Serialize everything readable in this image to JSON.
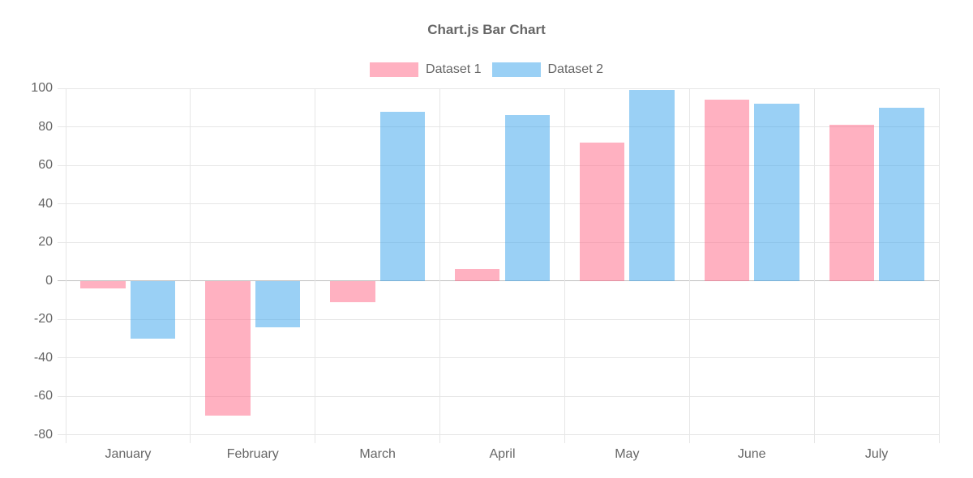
{
  "chart_data": {
    "type": "bar",
    "title": "Chart.js Bar Chart",
    "categories": [
      "January",
      "February",
      "March",
      "April",
      "May",
      "June",
      "July"
    ],
    "series": [
      {
        "name": "Dataset 1",
        "fill": "rgba(255, 99, 132, 0.5)",
        "solid": "#ffb1c1",
        "values": [
          -4,
          -70,
          -11,
          6,
          72,
          94,
          81
        ]
      },
      {
        "name": "Dataset 2",
        "fill": "rgba(54, 162, 235, 0.5)",
        "solid": "#9bd0f5",
        "values": [
          -30,
          -24,
          88,
          86,
          99,
          92,
          90
        ]
      }
    ],
    "ylim": [
      -80,
      100
    ],
    "ytick_step": 20,
    "yticks": [
      100,
      80,
      60,
      40,
      20,
      0,
      -20,
      -40,
      -60,
      -80
    ],
    "grid": true,
    "legend_position": "top",
    "axis_colors": {
      "grid": "#e6e6e6",
      "zero_line": "#bfbfbf",
      "tick_text": "#666666"
    }
  }
}
